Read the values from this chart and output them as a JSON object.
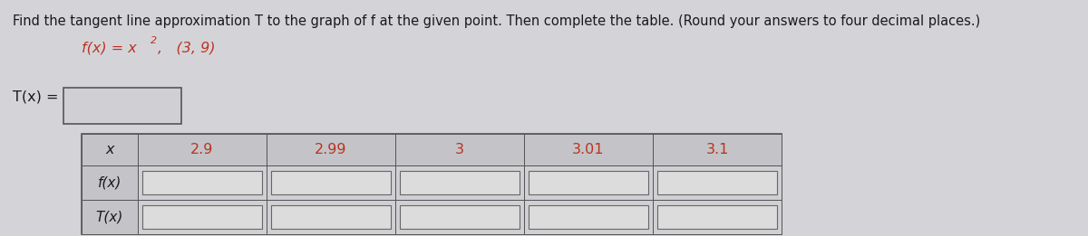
{
  "title_text": "Find the tangent line approximation T to the graph of f at the given point. Then complete the table. (Round your answers to four decimal places.)",
  "fx_label_part1": "f(x) = x",
  "fx_superscript": "2",
  "fx_label_part2": ",   (3, 9)",
  "tx_label": "T(x) =",
  "x_values": [
    "x",
    "2.9",
    "2.99",
    "3",
    "3.01",
    "3.1"
  ],
  "row_labels": [
    "f(x)",
    "T(x)"
  ],
  "bg_color": "#d4d4d8",
  "text_color_black": "#1a1a1a",
  "text_color_red": "#bb3322",
  "title_fontsize": 10.5,
  "subtitle_fontsize": 11.5,
  "label_fontsize": 11.5,
  "cell_value_fontsize": 11.5,
  "row_label_fontsize": 11.0,
  "input_box_color": "#dcdcdc",
  "input_box_edge": "#666666",
  "header_row_bg": "#c4c4c8",
  "data_row_bg": "#d0d0d4",
  "label_col_bg": "#c4c4c8",
  "table_border": "#555555",
  "tx_box_color": "#d0d0d4",
  "tx_box_edge": "#555555"
}
